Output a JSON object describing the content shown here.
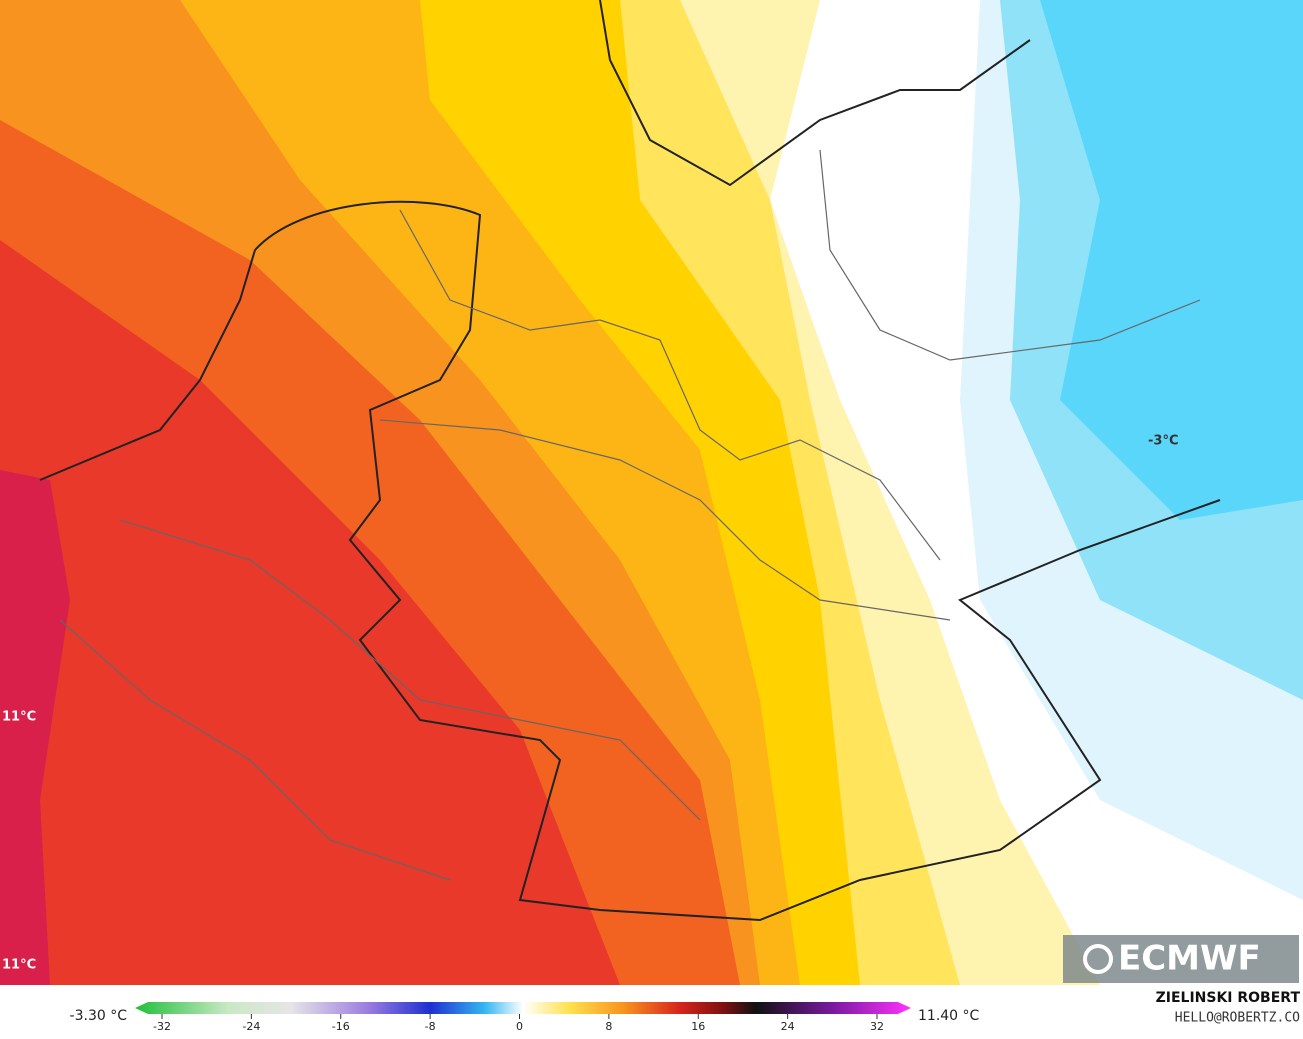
{
  "map": {
    "labels": [
      {
        "text": "11°C"
      },
      {
        "text": "11°C"
      },
      {
        "text": "-3°C"
      }
    ],
    "logo": "ECMWF"
  },
  "colorbar": {
    "min_label": "-3.30 °C",
    "max_label": "11.40 °C",
    "range": [
      -32,
      32
    ],
    "ticks": [
      -32,
      -24,
      -16,
      -8,
      0,
      8,
      16,
      24,
      32
    ]
  },
  "credit": {
    "author": "ZIELINSKI ROBERT",
    "contact": "HELLO@ROBERTZ.CO"
  }
}
